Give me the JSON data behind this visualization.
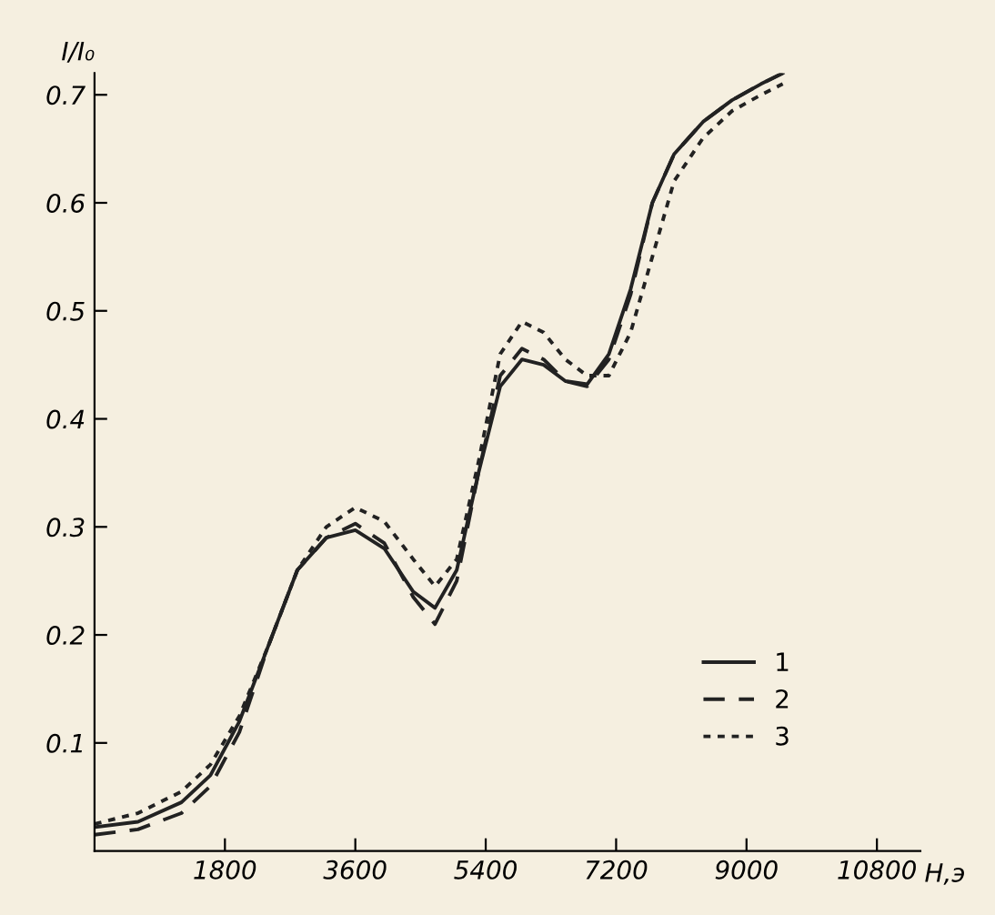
{
  "chart_data": {
    "type": "line",
    "xlabel": "H,э",
    "ylabel": "I/I₀",
    "x": [
      0,
      600,
      1200,
      1600,
      2000,
      2400,
      2800,
      3200,
      3600,
      4000,
      4400,
      4700,
      5000,
      5300,
      5600,
      5900,
      6200,
      6500,
      6800,
      7100,
      7400,
      7700,
      8000,
      8400,
      8800,
      9200,
      9500
    ],
    "series": [
      {
        "name": "1",
        "color": "#222222",
        "line_style": "solid",
        "values": [
          0.022,
          0.027,
          0.045,
          0.07,
          0.12,
          0.19,
          0.26,
          0.29,
          0.297,
          0.28,
          0.24,
          0.225,
          0.26,
          0.35,
          0.43,
          0.455,
          0.45,
          0.435,
          0.432,
          0.46,
          0.52,
          0.6,
          0.645,
          0.675,
          0.695,
          0.71,
          0.72
        ]
      },
      {
        "name": "2",
        "color": "#222222",
        "line_style": "dashed",
        "values": [
          0.015,
          0.02,
          0.035,
          0.06,
          0.11,
          0.19,
          0.26,
          0.29,
          0.303,
          0.285,
          0.235,
          0.21,
          0.25,
          0.35,
          0.44,
          0.465,
          0.455,
          0.435,
          0.43,
          0.455,
          0.515,
          0.6,
          0.645,
          0.675,
          0.695,
          0.71,
          0.72
        ]
      },
      {
        "name": "3",
        "color": "#222222",
        "line_style": "dotted",
        "values": [
          0.025,
          0.035,
          0.055,
          0.08,
          0.125,
          0.19,
          0.26,
          0.3,
          0.318,
          0.305,
          0.27,
          0.245,
          0.27,
          0.36,
          0.46,
          0.49,
          0.48,
          0.455,
          0.44,
          0.44,
          0.48,
          0.55,
          0.62,
          0.66,
          0.685,
          0.7,
          0.71
        ]
      }
    ],
    "xlim": [
      0,
      11400
    ],
    "ylim": [
      0,
      0.72
    ],
    "xticks": [
      1800,
      3600,
      5400,
      7200,
      9000,
      10800
    ],
    "yticks": [
      0.1,
      0.2,
      0.3,
      0.4,
      0.5,
      0.6,
      0.7
    ],
    "grid": false,
    "legend": "bottom right"
  }
}
